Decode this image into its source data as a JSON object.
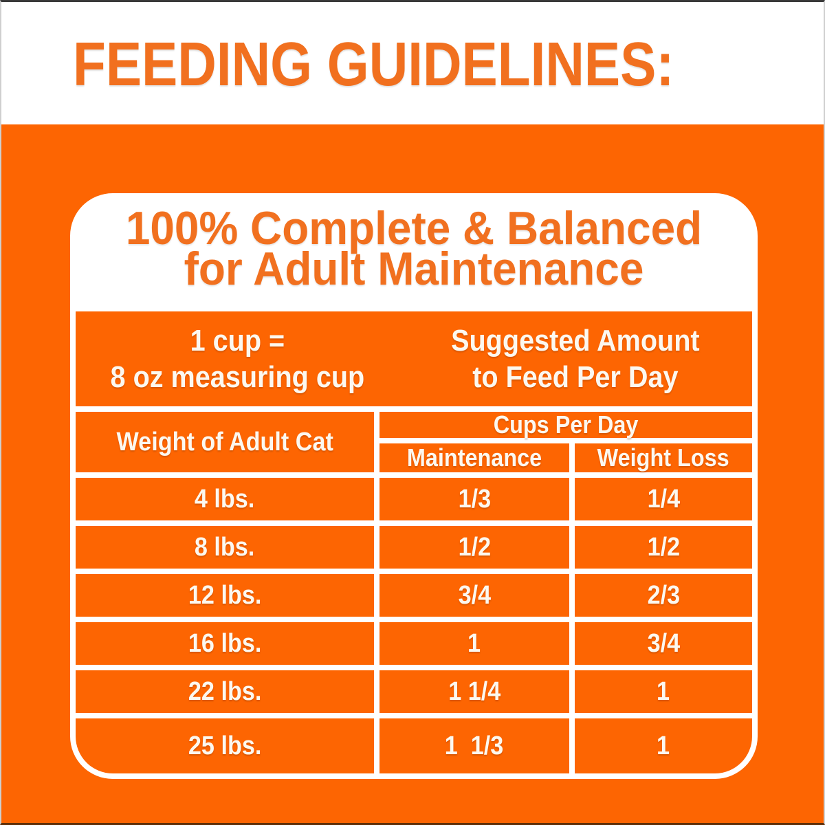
{
  "colors": {
    "background_orange": "#FD6502",
    "heading_orange": "#F1701F",
    "text_on_orange": "#FCF8F0",
    "card_white": "#FFFFFF"
  },
  "banner": {
    "title": "FEEDING GUIDELINES:"
  },
  "card": {
    "title_line1": "100% Complete & Balanced",
    "title_line2": "for Adult Maintenance"
  },
  "table": {
    "cup_note": {
      "line1": "1 cup =",
      "line2": "8 oz measuring cup"
    },
    "suggested": {
      "line1": "Suggested Amount",
      "line2": "to Feed Per Day"
    },
    "weight_column_header": "Weight of Adult Cat",
    "cups_per_day_header": "Cups Per Day",
    "subheaders": {
      "maintenance": "Maintenance",
      "weight_loss": "Weight Loss"
    },
    "rows": [
      {
        "weight": "4 lbs.",
        "maintenance": "1/3",
        "weight_loss": "1/4"
      },
      {
        "weight": "8 lbs.",
        "maintenance": "1/2",
        "weight_loss": "1/2"
      },
      {
        "weight": "12 lbs.",
        "maintenance": "3/4",
        "weight_loss": "2/3"
      },
      {
        "weight": "16 lbs.",
        "maintenance": "1",
        "weight_loss": "3/4"
      },
      {
        "weight": "22 lbs.",
        "maintenance": "1 1/4",
        "weight_loss": "1"
      },
      {
        "weight": "25 lbs.",
        "maintenance": "1  1/3",
        "weight_loss": "1"
      }
    ]
  }
}
